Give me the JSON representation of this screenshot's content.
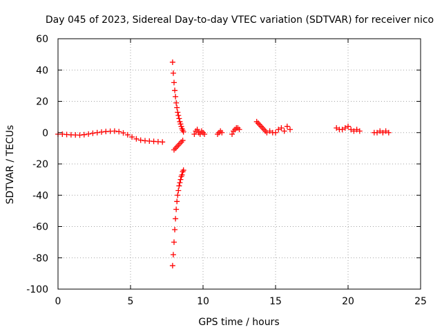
{
  "chart_data": {
    "type": "scatter",
    "title": "Day 045 of 2023, Sidereal Day-to-day VTEC variation (SDTVAR) for receiver nico",
    "xlabel": "GPS time / hours",
    "ylabel": "SDTVAR / TECUs",
    "xlim": [
      0,
      25
    ],
    "ylim": [
      -100,
      60
    ],
    "xticks": [
      0,
      5,
      10,
      15,
      20,
      25
    ],
    "yticks": [
      -100,
      -80,
      -60,
      -40,
      -20,
      0,
      20,
      40,
      60
    ],
    "grid": true,
    "marker": "+",
    "color": "#ff0000",
    "series": [
      {
        "name": "SDTVAR",
        "segments": [
          {
            "x": [
              0.0,
              0.3,
              0.6,
              0.9,
              1.2,
              1.5,
              1.8,
              2.1,
              2.4,
              2.7,
              3.0,
              3.3,
              3.6,
              3.9,
              4.2,
              4.5,
              4.8,
              5.1,
              5.4,
              5.7,
              6.0,
              6.3,
              6.6,
              6.9,
              7.2
            ],
            "y": [
              -1,
              -1,
              -1.2,
              -1.4,
              -1.5,
              -1.6,
              -1.3,
              -0.9,
              -0.4,
              0,
              0.4,
              0.7,
              0.9,
              1.0,
              0.6,
              -0.2,
              -1.4,
              -2.8,
              -4.0,
              -4.8,
              -5.2,
              -5.4,
              -5.6,
              -5.8,
              -6.0
            ]
          },
          {
            "x": [
              7.9,
              7.95,
              8.0,
              8.05,
              8.1,
              8.15,
              8.2,
              8.25,
              8.3,
              8.35,
              8.4,
              8.45,
              8.5,
              8.55,
              8.6,
              8.65
            ],
            "y": [
              45,
              38,
              32,
              27,
              23,
              19,
              16,
              13,
              11,
              9,
              7,
              5.5,
              4,
              2.5,
              1.5,
              0.5
            ]
          },
          {
            "x": [
              8.0,
              8.1,
              8.2,
              8.3,
              8.4,
              8.5,
              8.6
            ],
            "y": [
              -11,
              -10,
              -9,
              -8,
              -7,
              -6,
              -5
            ]
          },
          {
            "x": [
              7.9,
              7.95,
              8.0,
              8.05,
              8.1,
              8.15,
              8.2,
              8.25,
              8.3,
              8.35,
              8.4,
              8.45,
              8.5,
              8.55,
              8.6,
              8.65
            ],
            "y": [
              -85,
              -78,
              -70,
              -62,
              -55,
              -49,
              -44,
              -40,
              -37,
              -34,
              -32,
              -30,
              -28,
              -27,
              -25,
              -24
            ]
          },
          {
            "x": [
              9.4,
              9.5,
              9.6,
              9.7,
              9.8,
              9.9,
              10.0,
              10.1
            ],
            "y": [
              -1,
              1,
              2,
              0,
              -1,
              1,
              0,
              -1
            ]
          },
          {
            "x": [
              11.0,
              11.1,
              11.2,
              11.3
            ],
            "y": [
              -1,
              0,
              1,
              0
            ]
          },
          {
            "x": [
              12.0,
              12.1,
              12.2,
              12.3,
              12.4,
              12.5
            ],
            "y": [
              -1,
              1,
              2,
              3,
              3,
              2
            ]
          },
          {
            "x": [
              13.7,
              13.8,
              13.9,
              14.0,
              14.1,
              14.2,
              14.3,
              14.4
            ],
            "y": [
              7,
              6,
              5,
              4,
              3,
              2,
              1,
              0
            ]
          },
          {
            "x": [
              14.6,
              14.8,
              15.0,
              15.2,
              15.4,
              15.6,
              15.8,
              16.0
            ],
            "y": [
              1,
              0,
              0,
              2,
              3,
              1,
              4,
              2
            ]
          },
          {
            "x": [
              19.2,
              19.4,
              19.6,
              19.8,
              20.0,
              20.2
            ],
            "y": [
              3,
              2,
              2,
              3,
              4,
              2
            ]
          },
          {
            "x": [
              20.4,
              20.6,
              20.8
            ],
            "y": [
              1,
              2,
              1
            ]
          },
          {
            "x": [
              21.8,
              22.0,
              22.2,
              22.4,
              22.6,
              22.8
            ],
            "y": [
              0,
              0,
              1,
              0,
              1,
              0
            ]
          }
        ]
      }
    ]
  }
}
